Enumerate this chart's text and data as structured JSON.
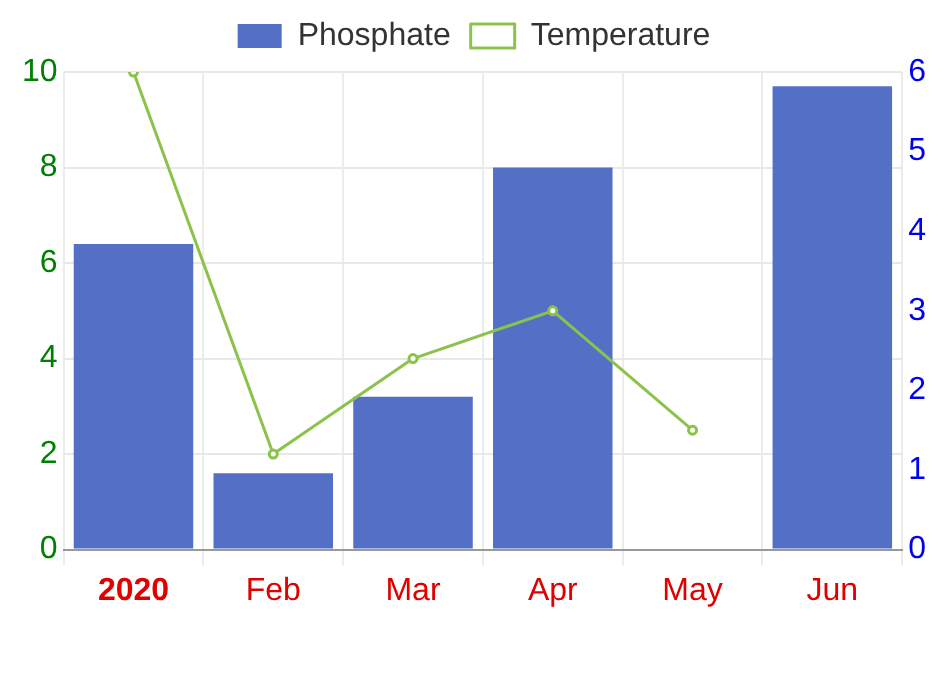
{
  "chart_data": {
    "type": "bar",
    "categories": [
      "2020",
      "Feb",
      "Mar",
      "Apr",
      "May",
      "Jun"
    ],
    "series": [
      {
        "name": "Phosphate",
        "color": "#5470c6",
        "values": [
          6.4,
          1.6,
          3.2,
          8.0,
          null,
          9.7
        ]
      },
      {
        "name": "Temperature",
        "type": "line",
        "axis": "y2",
        "color": "#8bc34a",
        "values": [
          6,
          1.2,
          2.4,
          3.0,
          1.5,
          null
        ]
      }
    ],
    "ylim": [
      0,
      10
    ],
    "yticks": [
      0,
      2,
      4,
      6,
      8,
      10
    ],
    "y2lim": [
      0,
      6
    ],
    "y2ticks": [
      0,
      1,
      2,
      3,
      4,
      5,
      6
    ],
    "grid": true,
    "legend": "top",
    "marker": "circle",
    "line_style": "solid"
  }
}
